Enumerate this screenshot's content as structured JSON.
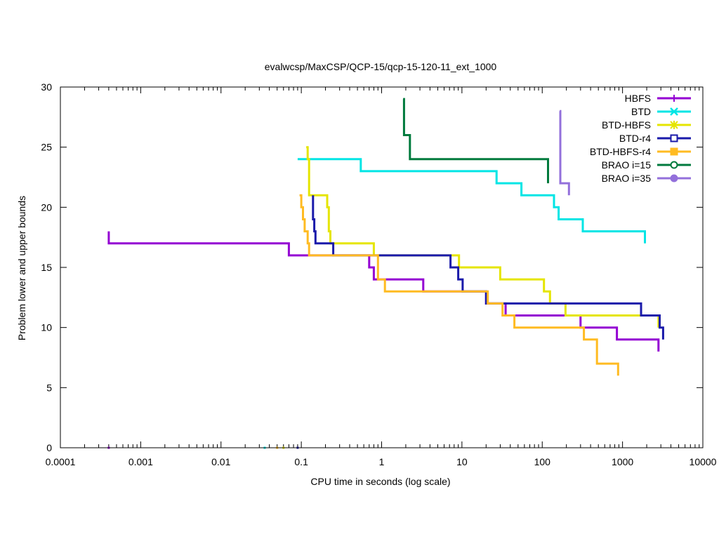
{
  "chart_data": {
    "type": "line",
    "title": "evalwcsp/MaxCSP/QCP-15/qcp-15-120-11_ext_1000",
    "xlabel": "CPU time in seconds (log scale)",
    "ylabel": "Problem lower and upper bounds",
    "xscale": "log",
    "xlim": [
      0.0001,
      10000
    ],
    "ylim": [
      0,
      30
    ],
    "xticks": [
      0.0001,
      0.001,
      0.01,
      0.1,
      1,
      10,
      100,
      1000,
      10000
    ],
    "xtick_labels": [
      "0.0001",
      "0.001",
      "0.01",
      "0.1",
      "1",
      "10",
      "100",
      "1000",
      "10000"
    ],
    "yticks": [
      0,
      5,
      10,
      15,
      20,
      25,
      30
    ],
    "ytick_labels": [
      "0",
      "5",
      "10",
      "15",
      "20",
      "25",
      "30"
    ],
    "legend_position": "top-right",
    "series": [
      {
        "name": "HBFS",
        "color": "#9400d3",
        "marker": "plus",
        "step": true,
        "x": [
          0.0004,
          0.0004,
          0.07,
          0.13,
          0.7,
          0.8,
          3.3,
          20,
          35,
          300,
          850,
          2800
        ],
        "y": [
          18,
          17,
          16,
          16,
          15,
          14,
          13,
          12,
          11,
          10,
          9,
          8
        ],
        "lower_bound": {
          "x": 0.0004,
          "y": 0
        }
      },
      {
        "name": "BTD",
        "color": "#00e5e5",
        "marker": "cross",
        "step": true,
        "x": [
          0.09,
          0.55,
          27,
          55,
          140,
          160,
          320,
          1900,
          1900
        ],
        "y": [
          24,
          23,
          22,
          21,
          20,
          19,
          18,
          18,
          17
        ],
        "lower_bound": {
          "x": 0.035,
          "y": 0
        }
      },
      {
        "name": "BTD-HBFS",
        "color": "#e5e500",
        "marker": "star",
        "step": true,
        "x": [
          0.115,
          0.12,
          0.125,
          0.21,
          0.22,
          0.23,
          0.8,
          9.2,
          30,
          105,
          125,
          195,
          2800
        ],
        "y": [
          25,
          24,
          21,
          20,
          18,
          17,
          16,
          15,
          14,
          13,
          12,
          11,
          10
        ],
        "lower_bound": {
          "x": 0.06,
          "y": 0
        }
      },
      {
        "name": "BTD-r4",
        "color": "#1a1aaa",
        "marker": "square-open",
        "step": true,
        "x": [
          0.14,
          0.14,
          0.145,
          0.15,
          0.25,
          0.9,
          7.2,
          9,
          10.2,
          20,
          33,
          1700,
          2900,
          3200
        ],
        "y": [
          21,
          19,
          18,
          17,
          16,
          16,
          15,
          14,
          13,
          12,
          12,
          11,
          10,
          9
        ],
        "lower_bound": {
          "x": 0.09,
          "y": 0
        }
      },
      {
        "name": "BTD-HBFS-r4",
        "color": "#ffbb22",
        "marker": "square-filled",
        "step": true,
        "x": [
          0.095,
          0.1,
          0.105,
          0.11,
          0.12,
          0.125,
          0.9,
          1.1,
          21,
          32,
          45,
          330,
          480,
          880
        ],
        "y": [
          21,
          20,
          19,
          18,
          17,
          16,
          14,
          13,
          12,
          11,
          10,
          9,
          7,
          6
        ],
        "lower_bound": {
          "x": 0.05,
          "y": 0
        }
      },
      {
        "name": "BRAO i=15",
        "color": "#007a3d",
        "marker": "circle-open",
        "step": true,
        "x": [
          1.85,
          1.9,
          2.25,
          118,
          118
        ],
        "y": [
          29,
          26,
          24,
          24,
          22
        ]
      },
      {
        "name": "BRAO i=35",
        "color": "#9370db",
        "marker": "circle-filled",
        "step": true,
        "x": [
          165,
          168,
          215,
          215
        ],
        "y": [
          28,
          22,
          21,
          21
        ]
      }
    ]
  }
}
